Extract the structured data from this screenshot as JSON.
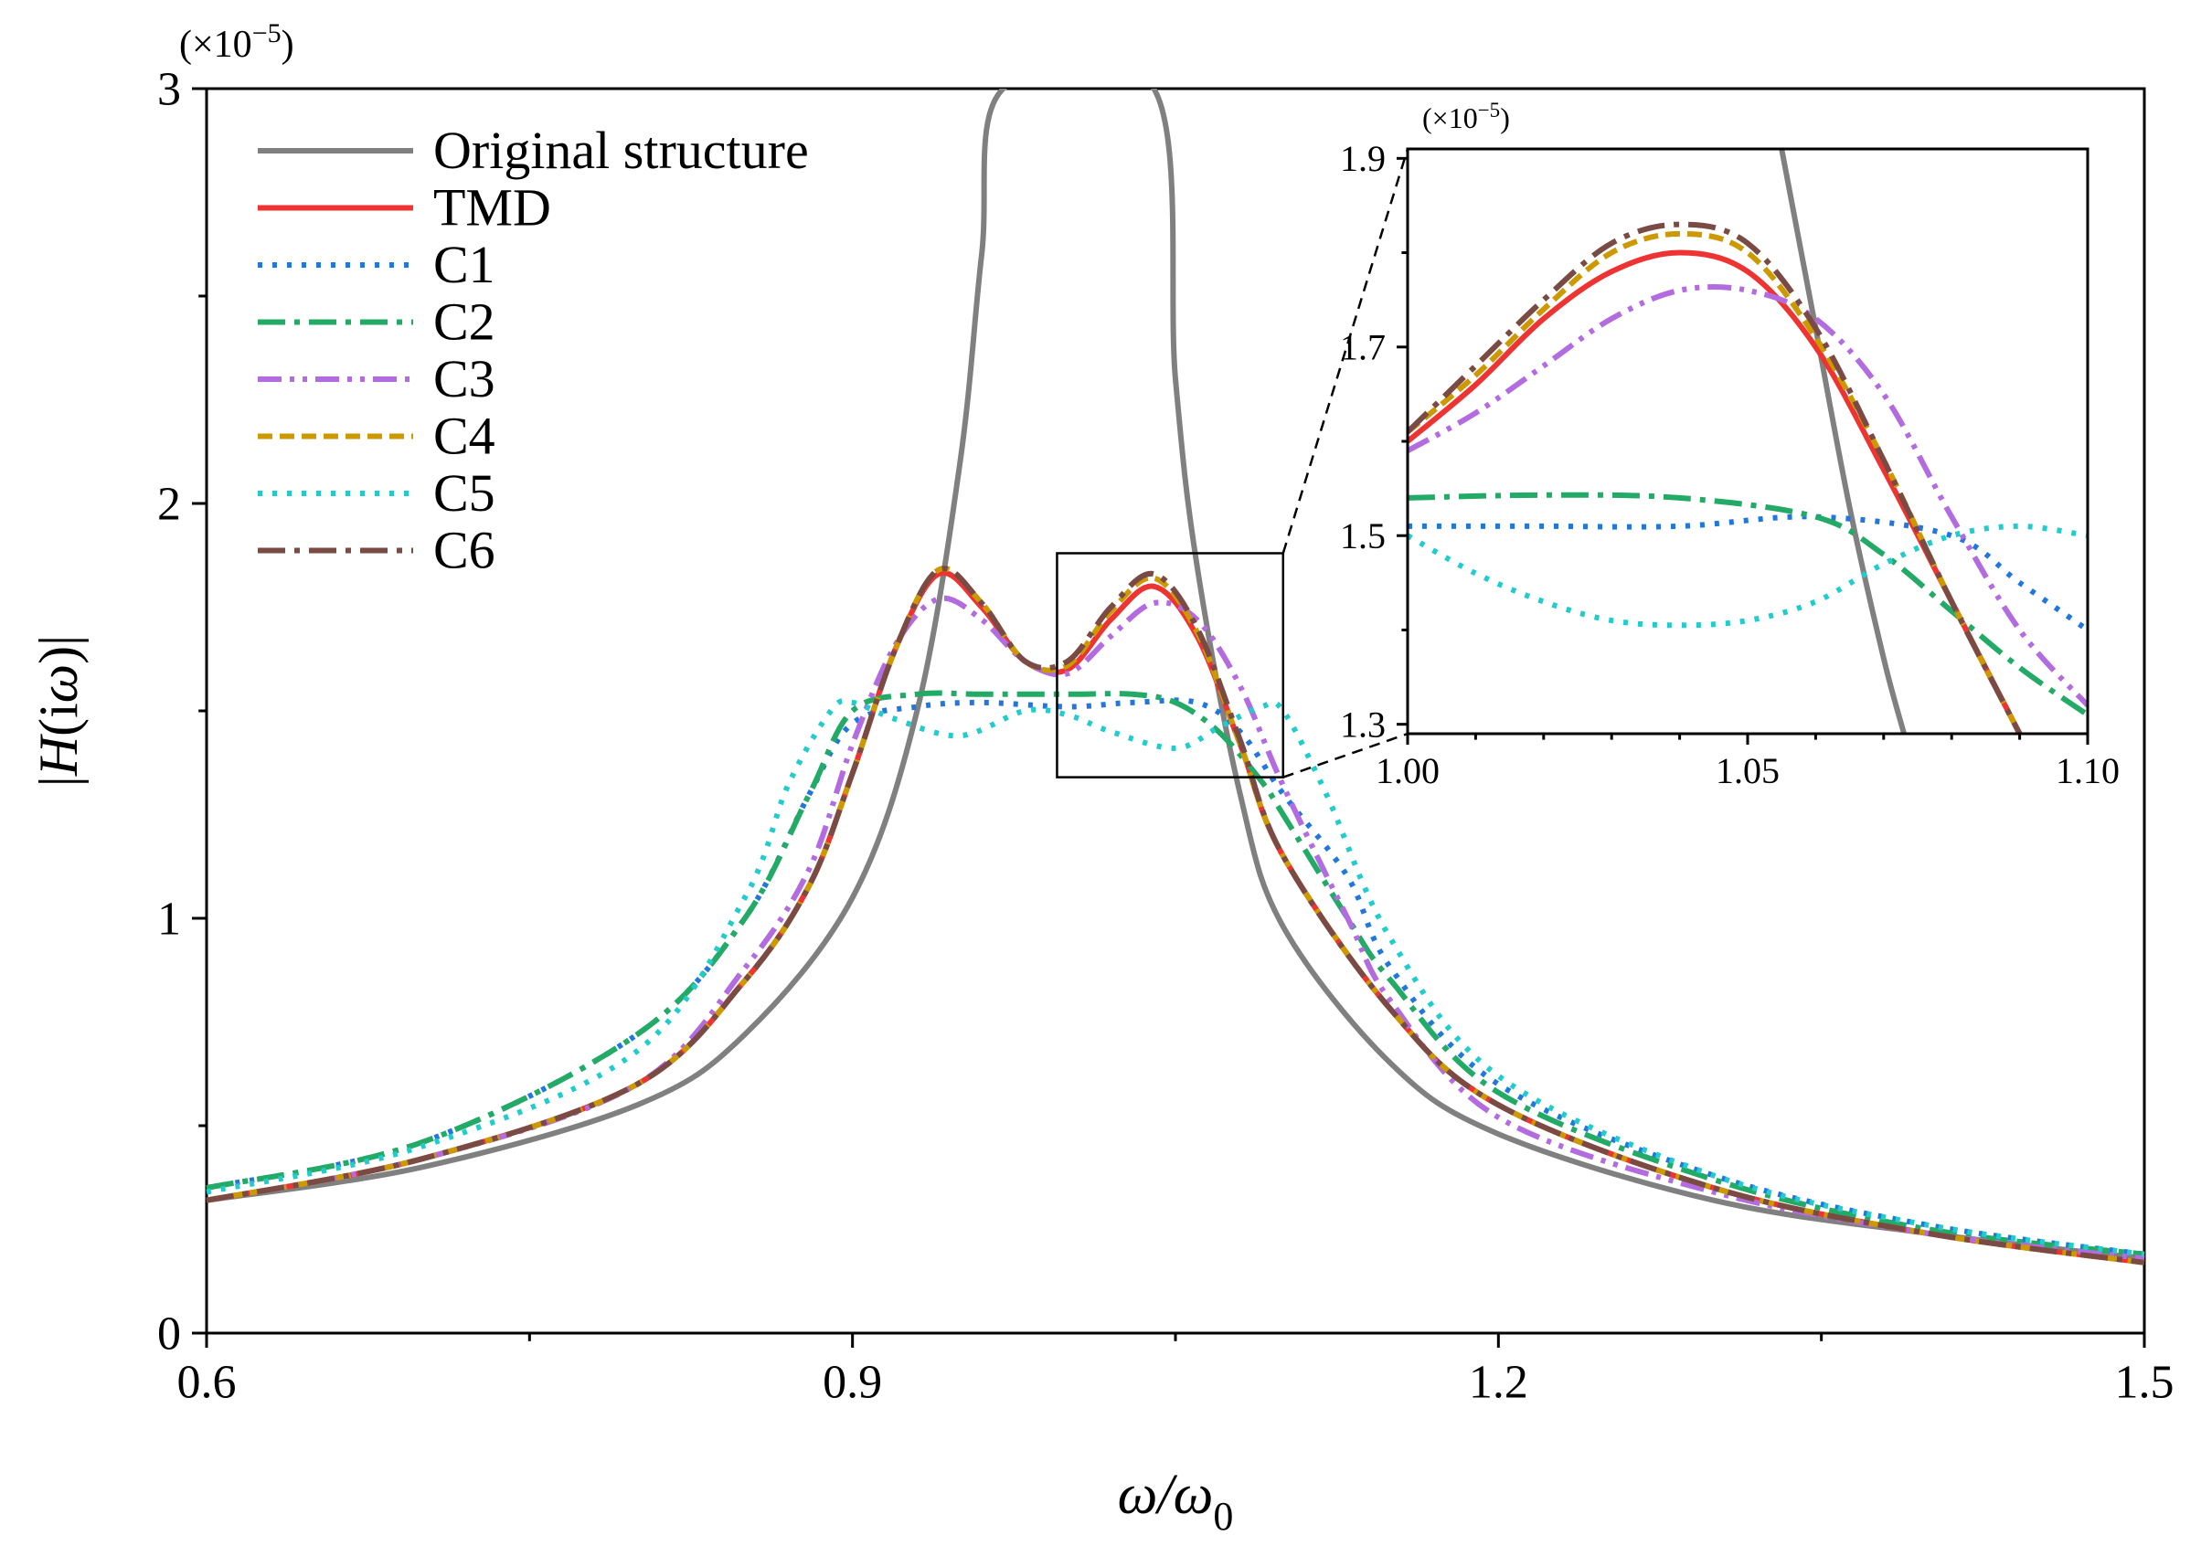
{
  "chart_data": [
    {
      "id": "main",
      "type": "line",
      "xlabel": "ω/ω0",
      "xlabel_main": "ω/ω",
      "xlabel_sub": "0",
      "ylabel": "|H(iω)|",
      "yscale_label": "(×10−5)",
      "yscale_base": "(×10",
      "yscale_exp": "−5",
      "yscale_close": ")",
      "xlim": [
        0.6,
        1.5
      ],
      "ylim": [
        0,
        3
      ],
      "xticks": [
        0.6,
        0.9,
        1.2,
        1.5
      ],
      "xtick_labels": [
        "0.6",
        "0.9",
        "1.2",
        "1.5"
      ],
      "yticks": [
        0,
        1,
        2,
        3
      ],
      "ytick_labels": [
        "0",
        "1",
        "2",
        "3"
      ],
      "legend_position": "top-left",
      "series": [
        {
          "name": "Original structure",
          "color": "#808080",
          "dash": "solid",
          "x": [
            0.6,
            0.7,
            0.8,
            0.85,
            0.9,
            0.93,
            0.95,
            0.96,
            0.97,
            1.04,
            1.05,
            1.06,
            1.08,
            1.1,
            1.15,
            1.2,
            1.3,
            1.4,
            1.5
          ],
          "y": [
            0.32,
            0.4,
            0.55,
            0.72,
            1.05,
            1.5,
            2.1,
            2.6,
            3.0,
            3.0,
            2.3,
            1.85,
            1.3,
            0.98,
            0.65,
            0.48,
            0.32,
            0.24,
            0.18
          ]
        },
        {
          "name": "TMD",
          "color": "#ee3333",
          "dash": "solid",
          "x": [
            0.6,
            0.7,
            0.8,
            0.85,
            0.88,
            0.9,
            0.92,
            0.94,
            0.96,
            0.98,
            1.0,
            1.02,
            1.04,
            1.06,
            1.08,
            1.1,
            1.15,
            1.2,
            1.3,
            1.4,
            1.5
          ],
          "y": [
            0.32,
            0.42,
            0.6,
            0.85,
            1.08,
            1.35,
            1.65,
            1.83,
            1.75,
            1.62,
            1.6,
            1.72,
            1.8,
            1.68,
            1.42,
            1.15,
            0.78,
            0.55,
            0.35,
            0.24,
            0.17
          ]
        },
        {
          "name": "C1",
          "color": "#2277dd",
          "dash": "dot",
          "x": [
            0.6,
            0.7,
            0.8,
            0.85,
            0.88,
            0.9,
            0.93,
            0.96,
            1.0,
            1.03,
            1.06,
            1.08,
            1.1,
            1.13,
            1.15,
            1.2,
            1.3,
            1.4,
            1.5
          ],
          "y": [
            0.35,
            0.46,
            0.72,
            1.0,
            1.3,
            1.47,
            1.51,
            1.52,
            1.51,
            1.52,
            1.52,
            1.45,
            1.3,
            1.1,
            0.88,
            0.6,
            0.38,
            0.26,
            0.19
          ]
        },
        {
          "name": "C2",
          "color": "#22aa66",
          "dash": "dashdot",
          "x": [
            0.6,
            0.7,
            0.8,
            0.85,
            0.88,
            0.9,
            0.93,
            0.96,
            1.0,
            1.03,
            1.05,
            1.07,
            1.09,
            1.1,
            1.13,
            1.15,
            1.2,
            1.3,
            1.4,
            1.5
          ],
          "y": [
            0.35,
            0.46,
            0.72,
            1.0,
            1.3,
            1.5,
            1.54,
            1.54,
            1.54,
            1.54,
            1.52,
            1.45,
            1.33,
            1.25,
            1.0,
            0.85,
            0.58,
            0.37,
            0.25,
            0.19
          ]
        },
        {
          "name": "C3",
          "color": "#b36be0",
          "dash": "dashdotdot",
          "x": [
            0.6,
            0.7,
            0.8,
            0.85,
            0.88,
            0.9,
            0.92,
            0.94,
            0.96,
            0.98,
            1.0,
            1.02,
            1.04,
            1.06,
            1.08,
            1.1,
            1.13,
            1.15,
            1.2,
            1.3,
            1.4,
            1.5
          ],
          "y": [
            0.32,
            0.42,
            0.6,
            0.88,
            1.12,
            1.42,
            1.66,
            1.77,
            1.72,
            1.62,
            1.59,
            1.68,
            1.76,
            1.72,
            1.56,
            1.32,
            1.0,
            0.8,
            0.52,
            0.34,
            0.24,
            0.18
          ]
        },
        {
          "name": "C4",
          "color": "#cc9900",
          "dash": "dash",
          "x": [
            0.6,
            0.7,
            0.8,
            0.85,
            0.88,
            0.9,
            0.92,
            0.94,
            0.96,
            0.98,
            1.0,
            1.02,
            1.04,
            1.06,
            1.08,
            1.1,
            1.15,
            1.2,
            1.3,
            1.4,
            1.5
          ],
          "y": [
            0.32,
            0.42,
            0.6,
            0.85,
            1.08,
            1.35,
            1.65,
            1.84,
            1.76,
            1.62,
            1.61,
            1.74,
            1.82,
            1.69,
            1.42,
            1.15,
            0.78,
            0.55,
            0.35,
            0.24,
            0.17
          ]
        },
        {
          "name": "C5",
          "color": "#22cccc",
          "dash": "dot",
          "x": [
            0.6,
            0.7,
            0.8,
            0.85,
            0.87,
            0.89,
            0.9,
            0.92,
            0.95,
            0.98,
            1.0,
            1.02,
            1.05,
            1.07,
            1.09,
            1.1,
            1.12,
            1.15,
            1.2,
            1.3,
            1.4,
            1.5
          ],
          "y": [
            0.34,
            0.45,
            0.68,
            1.05,
            1.32,
            1.5,
            1.52,
            1.48,
            1.44,
            1.5,
            1.49,
            1.45,
            1.41,
            1.46,
            1.51,
            1.5,
            1.3,
            0.95,
            0.62,
            0.38,
            0.26,
            0.19
          ]
        },
        {
          "name": "C6",
          "color": "#7a4a45",
          "dash": "dashdot",
          "x": [
            0.6,
            0.7,
            0.8,
            0.85,
            0.88,
            0.9,
            0.92,
            0.94,
            0.96,
            0.98,
            1.0,
            1.02,
            1.04,
            1.06,
            1.08,
            1.1,
            1.15,
            1.2,
            1.3,
            1.4,
            1.5
          ],
          "y": [
            0.32,
            0.42,
            0.6,
            0.85,
            1.08,
            1.35,
            1.65,
            1.84,
            1.76,
            1.62,
            1.62,
            1.75,
            1.83,
            1.7,
            1.43,
            1.15,
            0.78,
            0.55,
            0.35,
            0.24,
            0.17
          ]
        }
      ],
      "zoom_box": {
        "xlim": [
          0.995,
          1.1
        ],
        "ylim": [
          1.34,
          1.88
        ]
      }
    },
    {
      "id": "inset",
      "type": "line",
      "yscale_label": "(×10−5)",
      "yscale_base": "(×10",
      "yscale_exp": "−5",
      "yscale_close": ")",
      "xlim": [
        1.0,
        1.1
      ],
      "ylim": [
        1.29,
        1.91
      ],
      "xticks": [
        1.0,
        1.05,
        1.1
      ],
      "xtick_labels": [
        "1.00",
        "1.05",
        "1.10"
      ],
      "yticks": [
        1.3,
        1.5,
        1.7,
        1.9
      ],
      "ytick_labels": [
        "1.3",
        "1.5",
        "1.7",
        "1.9"
      ],
      "series": [
        {
          "name": "Original structure",
          "color": "#808080",
          "dash": "solid",
          "x": [
            1.055,
            1.06,
            1.065,
            1.07,
            1.073
          ],
          "y": [
            1.91,
            1.72,
            1.53,
            1.37,
            1.29
          ]
        },
        {
          "name": "TMD",
          "color": "#ee3333",
          "dash": "solid",
          "x": [
            1.0,
            1.01,
            1.02,
            1.03,
            1.04,
            1.05,
            1.06,
            1.07,
            1.08,
            1.09
          ],
          "y": [
            1.6,
            1.66,
            1.73,
            1.78,
            1.8,
            1.78,
            1.7,
            1.57,
            1.43,
            1.29
          ]
        },
        {
          "name": "C1",
          "color": "#2277dd",
          "dash": "dot",
          "x": [
            1.0,
            1.02,
            1.04,
            1.06,
            1.08,
            1.09,
            1.1
          ],
          "y": [
            1.51,
            1.51,
            1.51,
            1.52,
            1.5,
            1.45,
            1.4
          ]
        },
        {
          "name": "C2",
          "color": "#22aa66",
          "dash": "dashdot",
          "x": [
            1.0,
            1.02,
            1.04,
            1.06,
            1.07,
            1.08,
            1.09,
            1.1
          ],
          "y": [
            1.54,
            1.543,
            1.54,
            1.52,
            1.48,
            1.42,
            1.36,
            1.31
          ]
        },
        {
          "name": "C3",
          "color": "#b36be0",
          "dash": "dashdotdot",
          "x": [
            1.0,
            1.01,
            1.02,
            1.03,
            1.04,
            1.05,
            1.06,
            1.07,
            1.08,
            1.09,
            1.1
          ],
          "y": [
            1.59,
            1.63,
            1.68,
            1.73,
            1.76,
            1.76,
            1.73,
            1.65,
            1.52,
            1.4,
            1.32
          ]
        },
        {
          "name": "C4",
          "color": "#cc9900",
          "dash": "dash",
          "x": [
            1.0,
            1.01,
            1.02,
            1.03,
            1.04,
            1.05,
            1.06,
            1.07,
            1.08,
            1.09
          ],
          "y": [
            1.61,
            1.67,
            1.74,
            1.8,
            1.82,
            1.8,
            1.71,
            1.58,
            1.43,
            1.29
          ]
        },
        {
          "name": "C5",
          "color": "#22cccc",
          "dash": "dot",
          "x": [
            1.0,
            1.01,
            1.02,
            1.03,
            1.04,
            1.05,
            1.06,
            1.07,
            1.08,
            1.09,
            1.1
          ],
          "y": [
            1.5,
            1.46,
            1.43,
            1.41,
            1.405,
            1.41,
            1.43,
            1.47,
            1.5,
            1.51,
            1.5
          ]
        },
        {
          "name": "C6",
          "color": "#7a4a45",
          "dash": "dashdot",
          "x": [
            1.0,
            1.01,
            1.02,
            1.03,
            1.04,
            1.05,
            1.06,
            1.07,
            1.08,
            1.09
          ],
          "y": [
            1.61,
            1.68,
            1.75,
            1.81,
            1.83,
            1.81,
            1.72,
            1.58,
            1.43,
            1.29
          ]
        }
      ]
    }
  ]
}
